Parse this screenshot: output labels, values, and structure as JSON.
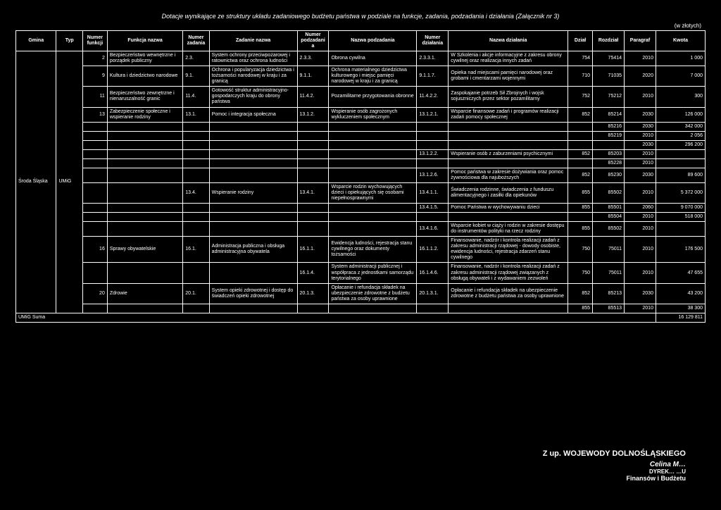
{
  "title": "Dotacje wynikające ze struktury układu zadaniowego budżetu państwa w podziale na funkcje, zadania, podzadania i działania (Załącznik nr 3)",
  "currency_note": "(w złotych)",
  "headers": {
    "gmina": "Gmina",
    "typ": "Typ",
    "nr_funkcji": "Numer funkcji",
    "funkcja": "Funkcja nazwa",
    "nr_zadania": "Numer zadania",
    "zadanie": "Zadanie nazwa",
    "nr_podzadania": "Numer podzadania",
    "podzadanie": "Nazwa podzadania",
    "nr_dzialania": "Numer działania",
    "dzialanie": "Nazwa działania",
    "dzial": "Dział",
    "rozdzial": "Rozdział",
    "paragraf": "Paragraf",
    "kwota": "Kwota"
  },
  "gmina": "Środa Śląska",
  "typ": "UMiG",
  "sum_label": "UMiG Suma",
  "sum_value": "16 129 811",
  "rows": [
    {
      "nf": "2",
      "f": "Bezpieczeństwo wewnętrzne i porządek publiczny",
      "nz": "2.3.",
      "z": "System ochrony przeciwpożarowej i ratownictwa oraz ochrona ludności",
      "np": "2.3.3.",
      "p": "Obrona cywilna",
      "nd": "2.3.3.1.",
      "d": "W Szkolenia i akcje informacyjne z zakresu obrony cywilnej oraz realizacja innych zadań",
      "dz": "754",
      "ro": "75414",
      "pa": "2010",
      "kw": "1 000"
    },
    {
      "nf": "9",
      "f": "Kultura i dziedzictwo narodowe",
      "nz": "9.1.",
      "z": "Ochrona i popularyzacja dziedzictwa i tożsamości narodowej w kraju i za granicą",
      "np": "9.1.1.",
      "p": "Ochrona materialnego dziedzictwa kulturowego i miejsc pamięci narodowej w kraju i za granicą",
      "nd": "9.1.1.7.",
      "d": "Opieka nad miejscami pamięci narodowej oraz grobami i cmentarzami wojennymi",
      "dz": "710",
      "ro": "71035",
      "pa": "2020",
      "kw": "7 000"
    },
    {
      "nf": "11",
      "f": "Bezpieczeństwo zewnętrzne i nienaruszalność granic",
      "nz": "11.4.",
      "z": "Gotowość struktur administracyjno-gospodarczych kraju do obrony państwa",
      "np": "11.4.2.",
      "p": "Pozamilitarne przygotowania obronne",
      "nd": "11.4.2.2.",
      "d": "Zaspokajanie potrzeb Sił Zbrojnych i wojsk sojuszniczych przez sektor pozamilitarny",
      "dz": "752",
      "ro": "75212",
      "pa": "2010",
      "kw": "300"
    },
    {
      "nf": "13",
      "f": "Zabezpieczenie społeczne i wspieranie rodziny",
      "nz": "13.1.",
      "z": "Pomoc i integracja społeczna",
      "np": "13.1.2.",
      "p": "Wspieranie osób zagrożonych wykluczeniem społecznym",
      "nd": "13.1.2.1.",
      "d": "Wsparcie finansowe zadań i programów realizacji zadań pomocy społecznej",
      "dz": "852",
      "ro": "85214",
      "pa": "2030",
      "kw": "126 000"
    },
    {
      "nf": "",
      "f": "",
      "nz": "",
      "z": "",
      "np": "",
      "p": "",
      "nd": "",
      "d": "",
      "dz": "",
      "ro": "85216",
      "pa": "2030",
      "kw": "342 000"
    },
    {
      "nf": "",
      "f": "",
      "nz": "",
      "z": "",
      "np": "",
      "p": "",
      "nd": "",
      "d": "",
      "dz": "",
      "ro": "85219",
      "pa": "2010",
      "kw": "2 056"
    },
    {
      "nf": "",
      "f": "",
      "nz": "",
      "z": "",
      "np": "",
      "p": "",
      "nd": "",
      "d": "",
      "dz": "",
      "ro": "",
      "pa": "2030",
      "kw": "296 200"
    },
    {
      "nf": "",
      "f": "",
      "nz": "",
      "z": "",
      "np": "",
      "p": "",
      "nd": "13.1.2.2.",
      "d": "Wspieranie osób z zaburzeniami psychicznymi",
      "dz": "852",
      "ro": "85203",
      "pa": "2010",
      "kw": ""
    },
    {
      "nf": "",
      "f": "",
      "nz": "",
      "z": "",
      "np": "",
      "p": "",
      "nd": "",
      "d": "",
      "dz": "",
      "ro": "85228",
      "pa": "2010",
      "kw": ""
    },
    {
      "nf": "",
      "f": "",
      "nz": "",
      "z": "",
      "np": "",
      "p": "",
      "nd": "13.1.2.6.",
      "d": "Pomoc państwa w zakresie dożywiania oraz pomoc żywnościowa dla najuboższych",
      "dz": "852",
      "ro": "85230",
      "pa": "2030",
      "kw": "89 600"
    },
    {
      "nf": "",
      "f": "",
      "nz": "13.4.",
      "z": "Wspieranie rodziny",
      "np": "13.4.1.",
      "p": "Wsparcie rodzin wychowujących dzieci i opiekujących się osobami niepełnosprawnymi",
      "nd": "13.4.1.1.",
      "d": "Świadczenia rodzinne, świadczenia z funduszu alimentacyjnego i zasiłki dla opiekunów",
      "dz": "855",
      "ro": "85502",
      "pa": "2010",
      "kw": "5 372 000"
    },
    {
      "nf": "",
      "f": "",
      "nz": "",
      "z": "",
      "np": "",
      "p": "",
      "nd": "13.4.1.5.",
      "d": "Pomoc Państwa w wychowywaniu dzieci",
      "dz": "855",
      "ro": "85501",
      "pa": "2060",
      "kw": "9 070 000"
    },
    {
      "nf": "",
      "f": "",
      "nz": "",
      "z": "",
      "np": "",
      "p": "",
      "nd": "",
      "d": "",
      "dz": "",
      "ro": "85504",
      "pa": "2010",
      "kw": "518 000"
    },
    {
      "nf": "",
      "f": "",
      "nz": "",
      "z": "",
      "np": "",
      "p": "",
      "nd": "13.4.1.6.",
      "d": "Wsparcie kobiet w ciąży i rodzin w zakresie dostępu do instrumentów polityki na rzecz rodziny",
      "dz": "855",
      "ro": "85502",
      "pa": "2010",
      "kw": ""
    },
    {
      "nf": "16",
      "f": "Sprawy obywatelskie",
      "nz": "16.1.",
      "z": "Administracja publiczna i obsługa administracyjna obywatela",
      "np": "16.1.1.",
      "p": "Ewidencja ludności, rejestracja stanu cywilnego oraz dokumenty tożsamości",
      "nd": "16.1.1.2.",
      "d": "Finansowanie, nadzór i kontrola realizacji zadań z zakresu administracji rządowej - dowody osobiste, ewidencja ludności, rejestracja zdarzeń stanu cywilnego",
      "dz": "750",
      "ro": "75011",
      "pa": "2010",
      "kw": "176 500"
    },
    {
      "nf": "",
      "f": "",
      "nz": "",
      "z": "",
      "np": "16.1.4.",
      "p": "System administracji publicznej i współpraca z jednostkami samorządu terytorialnego",
      "nd": "16.1.4.6.",
      "d": "Finansowanie, nadzór i kontrola realizacji zadań z zakresu administracji rządowej związanych z obsługą obywateli i z wydawaniem zezwoleń",
      "dz": "750",
      "ro": "75011",
      "pa": "2010",
      "kw": "47 655"
    },
    {
      "nf": "20",
      "f": "Zdrowie",
      "nz": "20.1.",
      "z": "System opieki zdrowotnej i dostęp do świadczeń opieki zdrowotnej",
      "np": "20.1.3.",
      "p": "Opłacanie i refundacja składek na ubezpieczenie zdrowotne z budżetu państwa za osoby uprawnione",
      "nd": "20.1.3.1.",
      "d": "Opłacanie i refundacja składek na ubezpieczenie zdrowotne z budżetu państwa za osoby uprawnione",
      "dz": "852",
      "ro": "85213",
      "pa": "2030",
      "kw": "43 200"
    },
    {
      "nf": "",
      "f": "",
      "nz": "",
      "z": "",
      "np": "",
      "p": "",
      "nd": "",
      "d": "",
      "dz": "855",
      "ro": "85513",
      "pa": "2010",
      "kw": "38 300"
    }
  ],
  "stamp": {
    "l1": "Z up. WOJEWODY DOLNOŚLĄSKIEGO",
    "l2": "Celina M…",
    "l3": "DYREK… …U",
    "l4": "Finansów i Budżetu"
  },
  "col_widths": [
    "46",
    "30",
    "28",
    "86",
    "30",
    "100",
    "36",
    "100",
    "36",
    "136",
    "28",
    "36",
    "36",
    "56"
  ]
}
